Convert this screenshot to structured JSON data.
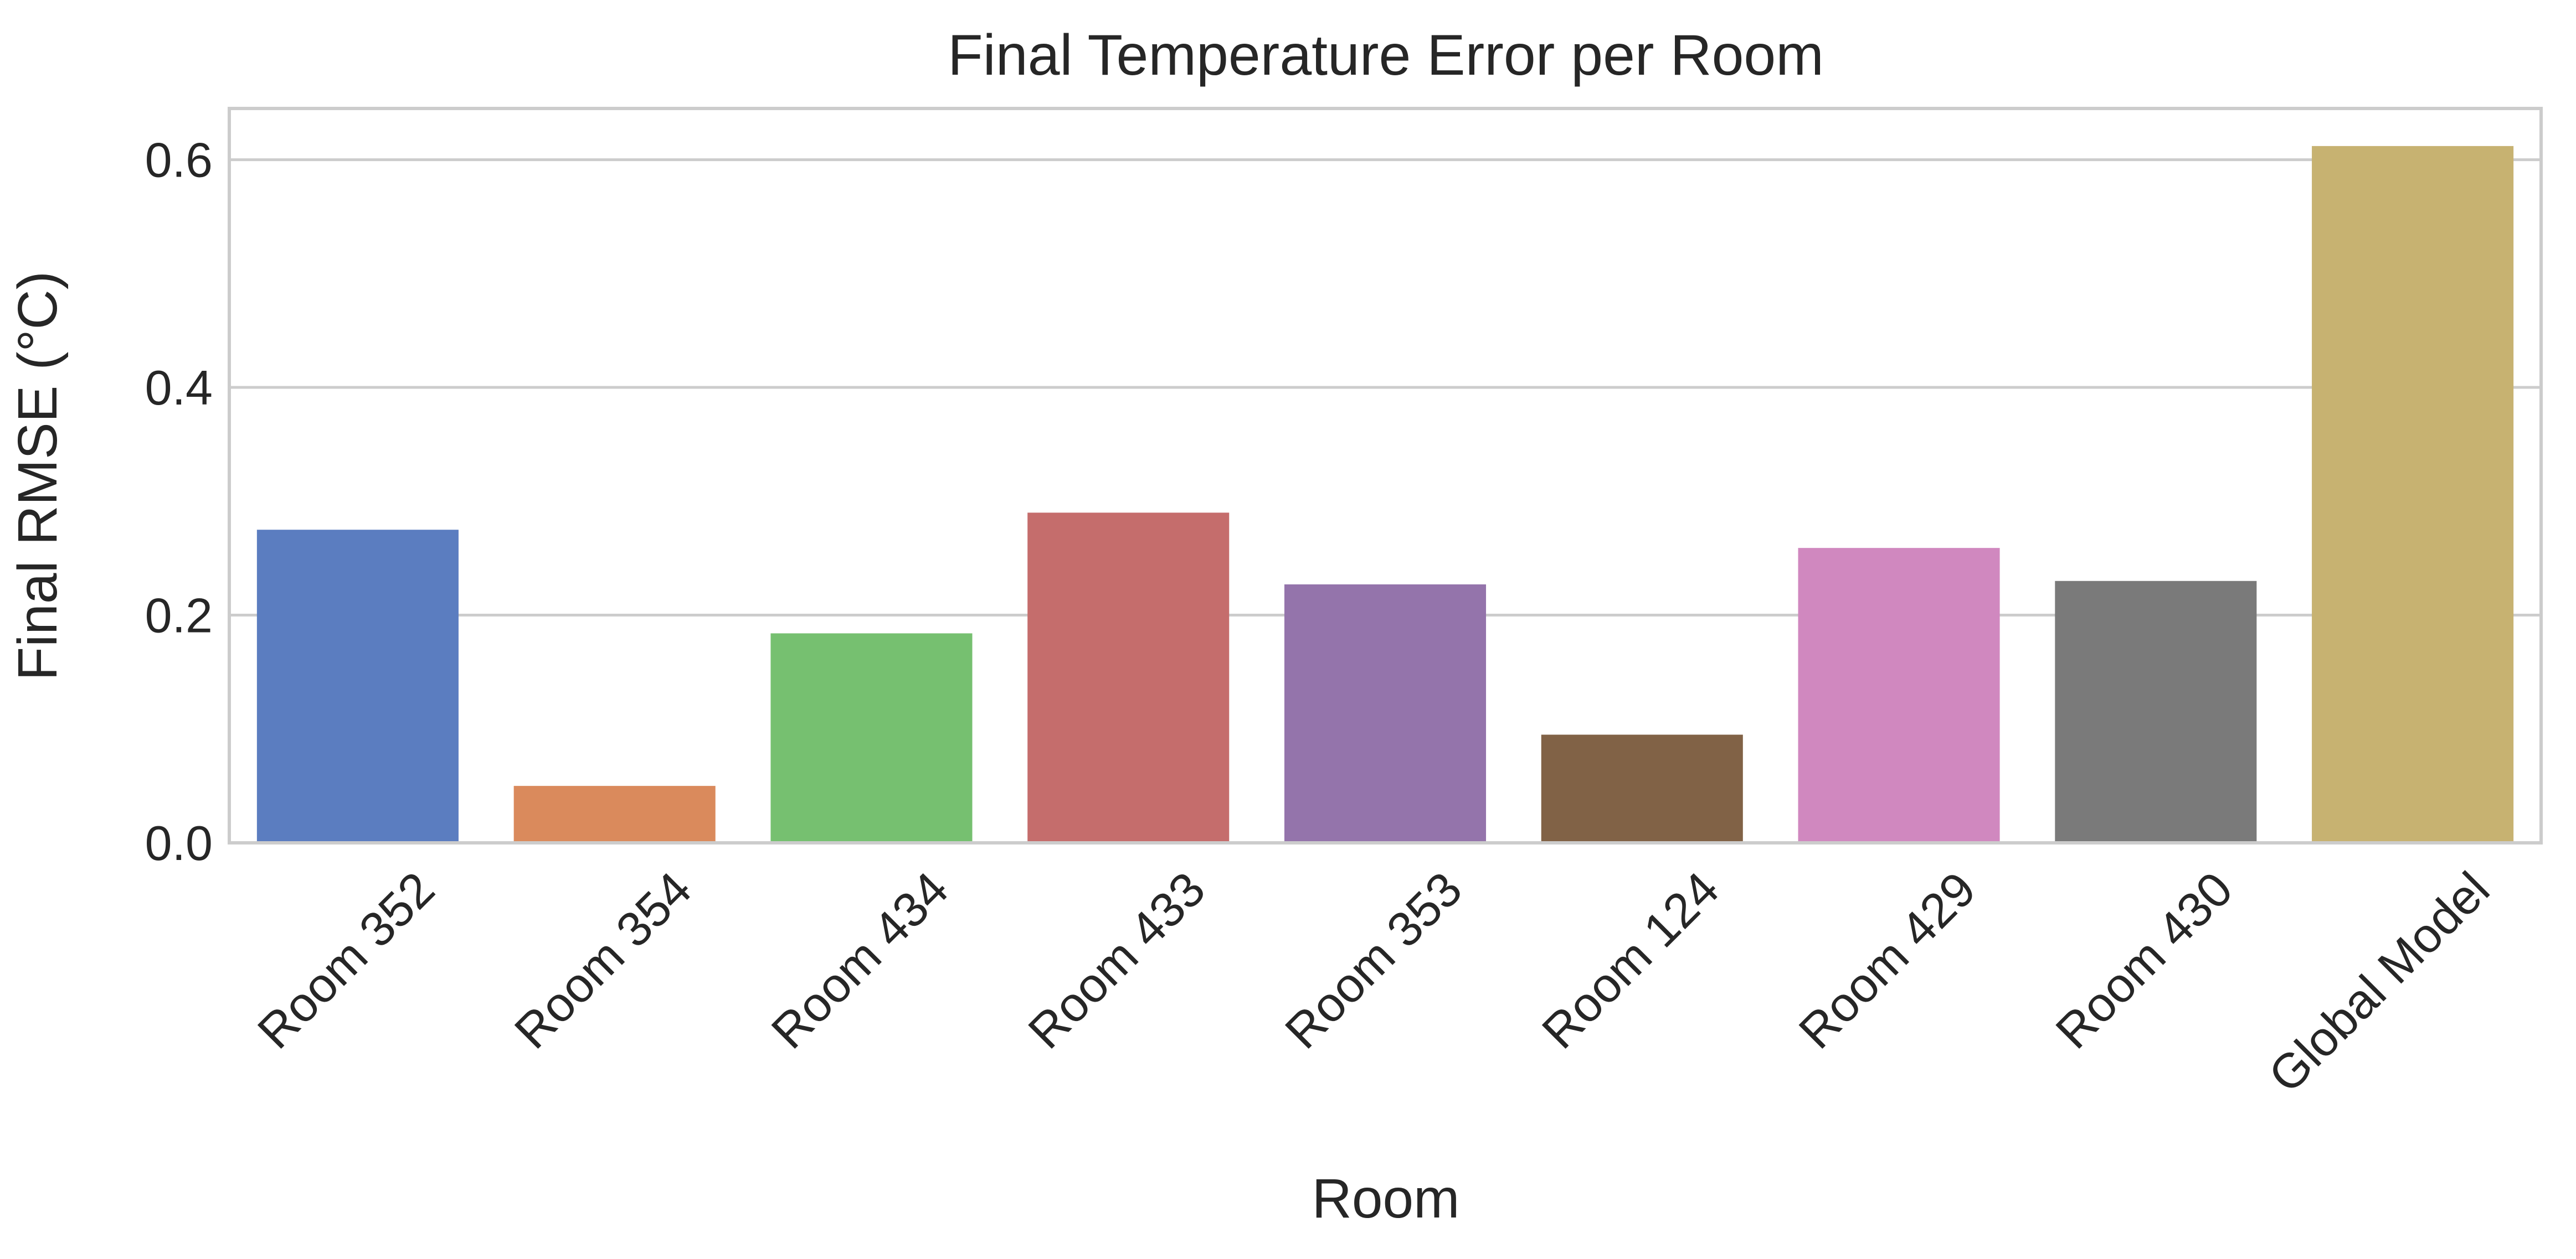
{
  "chart_data": {
    "type": "bar",
    "title": "Final Temperature Error per Room",
    "xlabel": "Room",
    "ylabel": "Final RMSE (°C)",
    "categories": [
      "Room 352",
      "Room 354",
      "Room 434",
      "Room 433",
      "Room 353",
      "Room 124",
      "Room 429",
      "Room 430",
      "Global Model"
    ],
    "values": [
      0.275,
      0.05,
      0.184,
      0.29,
      0.227,
      0.095,
      0.259,
      0.23,
      0.612
    ],
    "colors": [
      "#5b7dc0",
      "#da8a5c",
      "#76c070",
      "#c56d6c",
      "#9474ab",
      "#816246",
      "#d088bf",
      "#7a7a7a",
      "#c7b271"
    ],
    "ylim": [
      0,
      0.645
    ],
    "yticks": [
      "0.0",
      "0.2",
      "0.4",
      "0.6"
    ],
    "grid": "y"
  }
}
